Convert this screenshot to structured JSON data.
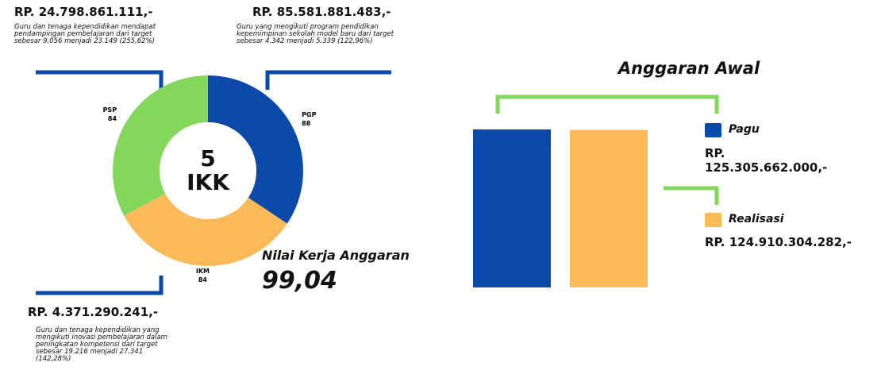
{
  "chart_data": [
    {
      "type": "donut",
      "categories": [
        "PGP",
        "IKM",
        "PSP"
      ],
      "values": [
        88,
        84,
        84
      ],
      "colors": [
        "#0b4aa8",
        "#fbb957",
        "#83d75b"
      ],
      "center_label": [
        "5",
        "IKK"
      ],
      "annotations": [
        {
          "amount": "RP. 24.798.861.111,-",
          "text": "Guru dan tenaga kependidikan mendapat pendampingan pembelajaran dari target sebesar 9.056 menjadi 23.149 (255,62%)"
        },
        {
          "amount": "RP. 85.581.881.483,-",
          "text": "Guru yang mengikuti program pendidikan kepemimpinan sekolah model baru dari target sebesar 4.342 menjadi 5.339 (122,96%)"
        },
        {
          "amount": "RP. 4.371.290.241,-",
          "text": "Guru dan tenaga kependidikan yang mengikuti inovasi pembelajaran dalam peningkatan kompetensi dari target sebesar 19.216 menjadi 27.341 (142,28%)"
        }
      ],
      "kpi": {
        "label": "Nilai Kerja Anggaran",
        "value": "99,04"
      }
    },
    {
      "type": "bar",
      "title": "Anggaran Awal",
      "series": [
        {
          "name": "Pagu",
          "color": "#0b4aa8",
          "values": [
            125305662000
          ],
          "value_labels": [
            "RP. 125.305.662.000,-"
          ]
        },
        {
          "name": "Realisasi",
          "color": "#fbb957",
          "values": [
            124910304282
          ],
          "value_labels": [
            "RP. 124.910.304.282,-"
          ]
        }
      ]
    }
  ]
}
